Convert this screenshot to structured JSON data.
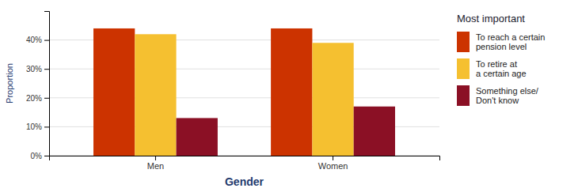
{
  "chart_data": {
    "type": "bar",
    "title": "Most important",
    "xlabel": "Gender",
    "ylabel": "Proportion",
    "categories": [
      "Men",
      "Women"
    ],
    "series": [
      {
        "name": "To reach a certain\npension level",
        "color": "#CC3300",
        "values": [
          0.44,
          0.44
        ]
      },
      {
        "name": "To retire at\na certain age",
        "color": "#F5C030",
        "values": [
          0.42,
          0.39
        ]
      },
      {
        "name": "Something else/\nDon't know",
        "color": "#8B1025",
        "values": [
          0.13,
          0.17
        ]
      }
    ],
    "ylim": [
      0,
      0.5
    ],
    "yticks": [
      {
        "value": 0.0,
        "label": "0%"
      },
      {
        "value": 0.1,
        "label": "10%"
      },
      {
        "value": 0.2,
        "label": "20%"
      },
      {
        "value": 0.3,
        "label": "30%"
      },
      {
        "value": 0.4,
        "label": "40%"
      }
    ],
    "grid": true,
    "legend": "right"
  }
}
